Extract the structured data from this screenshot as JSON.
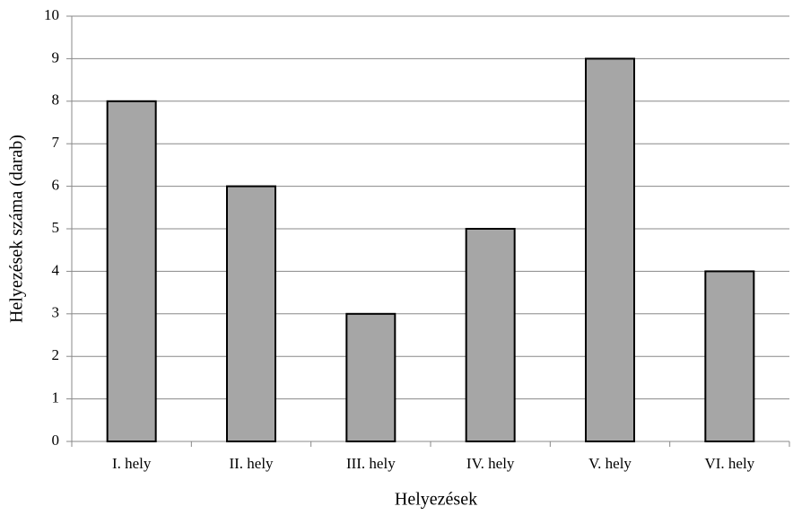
{
  "chart_data": {
    "type": "bar",
    "x_label": "Helyezések",
    "y_label": "Helyezések száma (darab)",
    "categories": [
      "I. hely",
      "II. hely",
      "III. hely",
      "IV. hely",
      "V. hely",
      "VI. hely"
    ],
    "values": [
      8,
      6,
      3,
      5,
      9,
      4
    ],
    "color": "#a6a6a6",
    "ylim": [
      0,
      10
    ],
    "yticks": [
      0,
      1,
      2,
      3,
      4,
      5,
      6,
      7,
      8,
      9,
      10
    ],
    "grid": true
  }
}
